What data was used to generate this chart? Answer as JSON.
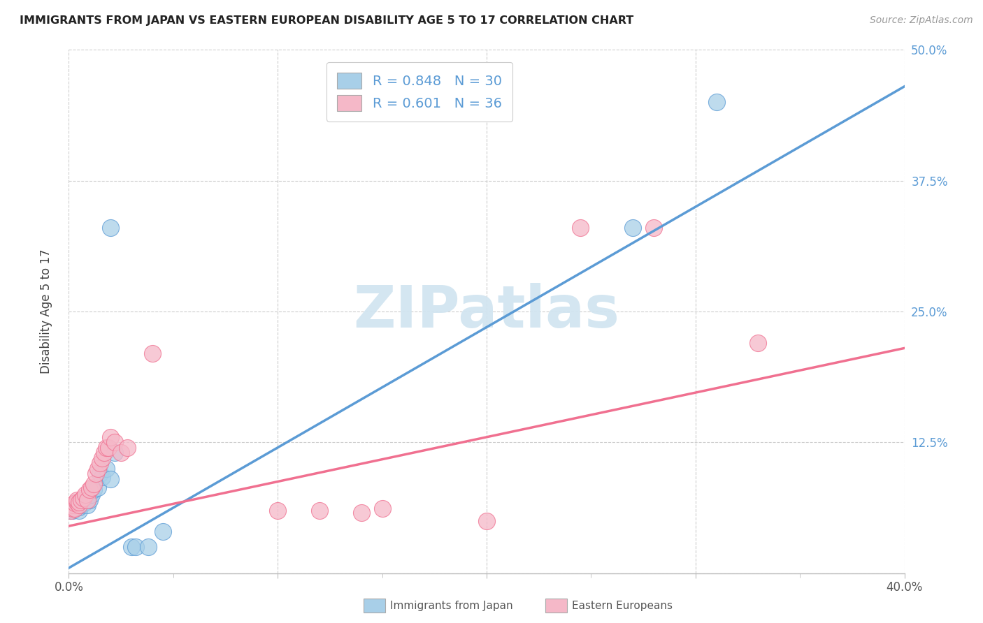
{
  "title": "IMMIGRANTS FROM JAPAN VS EASTERN EUROPEAN DISABILITY AGE 5 TO 17 CORRELATION CHART",
  "source": "Source: ZipAtlas.com",
  "ylabel": "Disability Age 5 to 17",
  "x_min": 0.0,
  "x_max": 0.4,
  "y_min": 0.0,
  "y_max": 0.5,
  "x_ticks": [
    0.0,
    0.1,
    0.2,
    0.3,
    0.4
  ],
  "x_tick_labels_show": [
    "0.0%",
    "",
    "",
    "",
    "40.0%"
  ],
  "x_minor_ticks": [
    0.05,
    0.1,
    0.15,
    0.2,
    0.25,
    0.3,
    0.35
  ],
  "y_ticks": [
    0.0,
    0.125,
    0.25,
    0.375,
    0.5
  ],
  "y_tick_labels": [
    "",
    "12.5%",
    "25.0%",
    "37.5%",
    "50.0%"
  ],
  "legend1_R": "0.848",
  "legend1_N": "30",
  "legend2_R": "0.601",
  "legend2_N": "36",
  "legend1_label": "Immigrants from Japan",
  "legend2_label": "Eastern Europeans",
  "blue_color": "#a8cfe8",
  "pink_color": "#f5b8c8",
  "line_blue": "#5b9bd5",
  "line_pink": "#f07090",
  "accent_blue": "#4472c4",
  "watermark_color": "#d0e4f0",
  "japan_scatter": [
    [
      0.001,
      0.06
    ],
    [
      0.002,
      0.06
    ],
    [
      0.002,
      0.065
    ],
    [
      0.003,
      0.062
    ],
    [
      0.003,
      0.065
    ],
    [
      0.004,
      0.065
    ],
    [
      0.004,
      0.068
    ],
    [
      0.005,
      0.06
    ],
    [
      0.005,
      0.063
    ],
    [
      0.006,
      0.065
    ],
    [
      0.007,
      0.067
    ],
    [
      0.007,
      0.07
    ],
    [
      0.008,
      0.068
    ],
    [
      0.009,
      0.065
    ],
    [
      0.01,
      0.07
    ],
    [
      0.011,
      0.075
    ],
    [
      0.012,
      0.08
    ],
    [
      0.014,
      0.082
    ],
    [
      0.015,
      0.095
    ],
    [
      0.016,
      0.092
    ],
    [
      0.018,
      0.1
    ],
    [
      0.02,
      0.09
    ],
    [
      0.022,
      0.115
    ],
    [
      0.03,
      0.025
    ],
    [
      0.032,
      0.025
    ],
    [
      0.038,
      0.025
    ],
    [
      0.045,
      0.04
    ],
    [
      0.02,
      0.33
    ],
    [
      0.27,
      0.33
    ],
    [
      0.31,
      0.45
    ]
  ],
  "eastern_scatter": [
    [
      0.001,
      0.06
    ],
    [
      0.002,
      0.062
    ],
    [
      0.002,
      0.065
    ],
    [
      0.003,
      0.062
    ],
    [
      0.003,
      0.067
    ],
    [
      0.004,
      0.068
    ],
    [
      0.004,
      0.07
    ],
    [
      0.005,
      0.065
    ],
    [
      0.005,
      0.068
    ],
    [
      0.006,
      0.07
    ],
    [
      0.007,
      0.072
    ],
    [
      0.008,
      0.075
    ],
    [
      0.009,
      0.07
    ],
    [
      0.01,
      0.08
    ],
    [
      0.011,
      0.082
    ],
    [
      0.012,
      0.085
    ],
    [
      0.013,
      0.095
    ],
    [
      0.014,
      0.1
    ],
    [
      0.015,
      0.105
    ],
    [
      0.016,
      0.11
    ],
    [
      0.017,
      0.115
    ],
    [
      0.018,
      0.12
    ],
    [
      0.019,
      0.12
    ],
    [
      0.02,
      0.13
    ],
    [
      0.022,
      0.125
    ],
    [
      0.025,
      0.115
    ],
    [
      0.028,
      0.12
    ],
    [
      0.04,
      0.21
    ],
    [
      0.1,
      0.06
    ],
    [
      0.12,
      0.06
    ],
    [
      0.14,
      0.058
    ],
    [
      0.15,
      0.062
    ],
    [
      0.2,
      0.05
    ],
    [
      0.245,
      0.33
    ],
    [
      0.28,
      0.33
    ],
    [
      0.33,
      0.22
    ]
  ],
  "japan_line_x": [
    0.0,
    0.4
  ],
  "japan_line_y": [
    0.005,
    0.465
  ],
  "eastern_line_x": [
    0.0,
    0.4
  ],
  "eastern_line_y": [
    0.045,
    0.215
  ]
}
